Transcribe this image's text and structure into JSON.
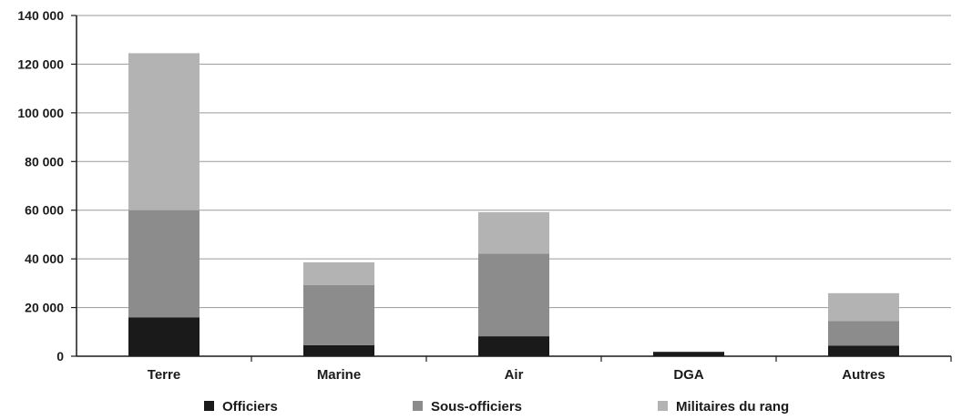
{
  "chart_data": {
    "type": "bar",
    "stacked": true,
    "categories": [
      "Terre",
      "Marine",
      "Air",
      "DGA",
      "Autres"
    ],
    "series": [
      {
        "name": "Officiers",
        "values": [
          16000,
          4500,
          8200,
          1800,
          4400
        ],
        "color": "#1a1a1a"
      },
      {
        "name": "Sous-officiers",
        "values": [
          44000,
          24800,
          34000,
          0,
          10000
        ],
        "color": "#8c8c8c"
      },
      {
        "name": "Militaires du rang",
        "values": [
          64500,
          9300,
          17000,
          0,
          11500
        ],
        "color": "#b3b3b3"
      }
    ],
    "ylim": [
      0,
      140000
    ],
    "yticks": [
      0,
      20000,
      40000,
      60000,
      80000,
      100000,
      120000,
      140000
    ],
    "ytick_labels": [
      "0",
      "20 000",
      "40 000",
      "60 000",
      "80 000",
      "100 000",
      "120 000",
      "140 000"
    ],
    "grid": true,
    "legend_position": "bottom"
  }
}
